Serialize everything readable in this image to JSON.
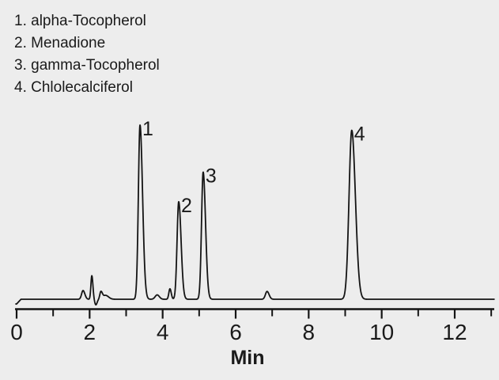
{
  "page": {
    "background_color": "#ededed",
    "text_color": "#1a1a1a"
  },
  "legend": {
    "items": [
      "1. alpha-Tocopherol",
      "2. Menadione",
      "3. gamma-Tocopherol",
      "4. Chlolecalciferol"
    ]
  },
  "chart_data": {
    "type": "line",
    "kind": "chromatogram",
    "title": "",
    "xlabel": "Min",
    "ylabel": "",
    "grid": false,
    "legend_position": "top-left",
    "line_color": "#141414",
    "x_range": [
      0,
      13.08
    ],
    "x_ticks_major": [
      0,
      2,
      4,
      6,
      8,
      10,
      12
    ],
    "x_ticks_minor": [
      1,
      3,
      5,
      7,
      9,
      11,
      13
    ],
    "baseline_rel": 0,
    "peaks": [
      {
        "label": "1",
        "compound": "alpha-Tocopherol",
        "retention_min": 3.38,
        "rel_height": 100,
        "sigma_l": 0.045,
        "sigma_r": 0.07
      },
      {
        "label": "2",
        "compound": "Menadione",
        "retention_min": 4.44,
        "rel_height": 56,
        "sigma_l": 0.045,
        "sigma_r": 0.065
      },
      {
        "label": "3",
        "compound": "gamma-Tocopherol",
        "retention_min": 5.11,
        "rel_height": 73,
        "sigma_l": 0.045,
        "sigma_r": 0.065
      },
      {
        "label": "4",
        "compound": "Chlolecalciferol",
        "retention_min": 9.18,
        "rel_height": 97,
        "sigma_l": 0.075,
        "sigma_r": 0.1
      }
    ],
    "minor_features": [
      {
        "t": 1.82,
        "h": 5.0,
        "sl": 0.04,
        "sr": 0.05
      },
      {
        "t": 2.06,
        "h": 13.5,
        "sl": 0.025,
        "sr": 0.03
      },
      {
        "t": 2.17,
        "h": -3.2,
        "sl": 0.03,
        "sr": 0.035
      },
      {
        "t": 2.31,
        "h": 4.5,
        "sl": 0.03,
        "sr": 0.045
      },
      {
        "t": 2.44,
        "h": 2.2,
        "sl": 0.05,
        "sr": 0.08
      },
      {
        "t": 3.85,
        "h": 2.5,
        "sl": 0.055,
        "sr": 0.06
      },
      {
        "t": 4.2,
        "h": 6.0,
        "sl": 0.03,
        "sr": 0.035
      },
      {
        "t": 6.86,
        "h": 4.5,
        "sl": 0.045,
        "sr": 0.055
      }
    ],
    "start_dip": {
      "until_t": 0.12,
      "depth": -2.7
    }
  }
}
